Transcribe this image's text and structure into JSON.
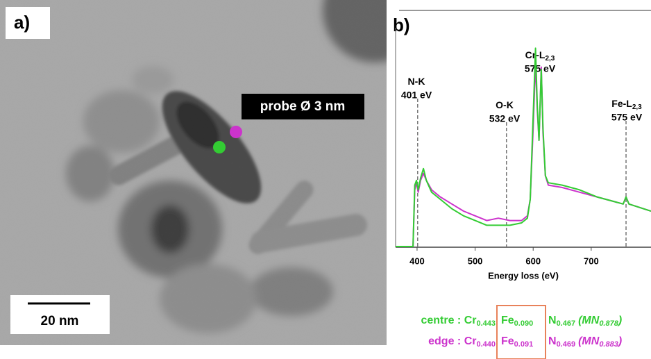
{
  "panel_a": {
    "label": "a)",
    "probe": "probe Ø 3 nm",
    "scale_bar": "20 nm"
  },
  "chart_data": {
    "type": "line",
    "label": "b)",
    "x_label": "Energy loss (eV)",
    "x": [
      363,
      393,
      396,
      399,
      402,
      406,
      411,
      416,
      425,
      440,
      460,
      480,
      500,
      520,
      540,
      560,
      580,
      590,
      595,
      600,
      604,
      607,
      610,
      614,
      617,
      621,
      626,
      650,
      680,
      710,
      740,
      755,
      760,
      765,
      790,
      803
    ],
    "series": [
      {
        "color": "#33cc33",
        "values": [
          0,
          0,
          26,
          28,
          24,
          29,
          33,
          28,
          23,
          20,
          16,
          13,
          11,
          9,
          9,
          9,
          10,
          12,
          20,
          55,
          84,
          60,
          45,
          75,
          50,
          30,
          27,
          26,
          24,
          21,
          19,
          18,
          21,
          18,
          16,
          15
        ]
      },
      {
        "color": "#cc33cc",
        "values": [
          0,
          0,
          24,
          27,
          23,
          28,
          31,
          28,
          24,
          21,
          18,
          15,
          13,
          11,
          12,
          11,
          11,
          13,
          20,
          50,
          78,
          58,
          45,
          76,
          48,
          30,
          26,
          25,
          23,
          21,
          19,
          18,
          21,
          18,
          16,
          15
        ]
      }
    ],
    "xlim": [
      363,
      803
    ],
    "xticks": [
      400,
      500,
      600,
      700
    ],
    "ylim": [
      0,
      100
    ],
    "annotations": [
      {
        "name": "N-K",
        "energy": "401 eV",
        "marker": 401
      },
      {
        "name": "O-K",
        "energy": "532 eV",
        "marker": 554
      },
      {
        "name": "Cr-L",
        "sub": "2,3",
        "energy": "575 eV"
      },
      {
        "name": "Fe-L",
        "sub": "2,3",
        "energy": "575 eV",
        "marker": 760
      }
    ]
  },
  "composition": [
    {
      "label": "centre : ",
      "color": "#33cc33",
      "cr": "Cr",
      "cr_sub": "0.443",
      "fe": "Fe",
      "fe_sub": "0.090",
      "n": "N",
      "n_sub": "0.467",
      "ratio": "(MN",
      "ratio_sub": "0.878",
      "close": ")"
    },
    {
      "label": "edge : ",
      "color": "#cc33cc",
      "cr": "Cr",
      "cr_sub": "0.440",
      "fe": "Fe",
      "fe_sub": "0.091",
      "n": "N",
      "n_sub": "0.469",
      "ratio": "(MN",
      "ratio_sub": "0.883",
      "close": ")"
    }
  ]
}
